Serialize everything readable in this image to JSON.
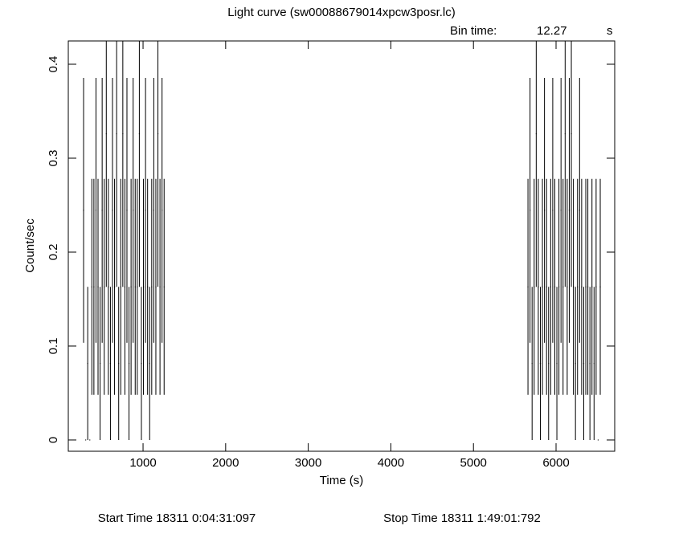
{
  "chart_data": {
    "type": "errorbar",
    "title": "Light curve (sw00088679014xpcw3posr.lc)",
    "bin_time_label": "Bin time:",
    "bin_time": 12.27,
    "bin_time_unit": "s",
    "x_label": "Time (s)",
    "y_label": "Count/sec",
    "start_time": "Start Time 18311  0:04:31:097",
    "stop_time": "Stop Time 18311  1:49:01:792",
    "color": "#000000",
    "xlim": [
      95,
      6710
    ],
    "ylim": [
      -0.012,
      0.4248
    ],
    "xticks": [
      1000,
      2000,
      3000,
      4000,
      5000,
      6000
    ],
    "yticks": [
      0,
      0.1,
      0.2,
      0.3,
      0.4
    ],
    "x": [
      280,
      305,
      330,
      355,
      380,
      405,
      430,
      455,
      480,
      505,
      530,
      555,
      580,
      605,
      630,
      655,
      680,
      705,
      730,
      755,
      780,
      805,
      830,
      855,
      880,
      905,
      930,
      955,
      980,
      1005,
      1030,
      1055,
      1080,
      1105,
      1130,
      1155,
      1180,
      1205,
      1230,
      1255,
      5660,
      5685,
      5710,
      5735,
      5760,
      5785,
      5810,
      5835,
      5860,
      5885,
      5910,
      5935,
      5960,
      5985,
      6010,
      6035,
      6060,
      6085,
      6110,
      6135,
      6160,
      6185,
      6210,
      6235,
      6260,
      6285,
      6310,
      6335,
      6360,
      6385,
      6410,
      6435,
      6460,
      6485,
      6510,
      6535
    ],
    "values": [
      0.2445,
      0,
      0.0815,
      0,
      0.163,
      0.163,
      0.2445,
      0.163,
      0.0815,
      0.2445,
      0.163,
      0.326,
      0.163,
      0.0815,
      0.2445,
      0.163,
      0.326,
      0.0815,
      0.163,
      0.326,
      0.163,
      0.2445,
      0.0815,
      0.163,
      0.2445,
      0.163,
      0.163,
      0.326,
      0.0815,
      0.163,
      0.2445,
      0.163,
      0.0815,
      0.163,
      0.2445,
      0.163,
      0.326,
      0.163,
      0.2445,
      0.163,
      0.163,
      0.2445,
      0.0815,
      0.163,
      0.326,
      0.163,
      0.0815,
      0.163,
      0.2445,
      0.163,
      0.0815,
      0.163,
      0.2445,
      0.163,
      0.0815,
      0.163,
      0.2445,
      0.163,
      0.326,
      0.163,
      0.2445,
      0.326,
      0.163,
      0.0815,
      0.163,
      0.2445,
      0.163,
      0.0815,
      0.163,
      0.163,
      0.0815,
      0.163,
      0.0815,
      0.163,
      0,
      0.163
    ],
    "errors": [
      0.141,
      0,
      0.0815,
      0,
      0.115,
      0.115,
      0.141,
      0.115,
      0.0815,
      0.141,
      0.115,
      0.163,
      0.115,
      0.0815,
      0.141,
      0.115,
      0.163,
      0.0815,
      0.115,
      0.163,
      0.115,
      0.141,
      0.0815,
      0.115,
      0.141,
      0.115,
      0.115,
      0.163,
      0.0815,
      0.115,
      0.141,
      0.115,
      0.0815,
      0.115,
      0.141,
      0.115,
      0.163,
      0.115,
      0.141,
      0.115,
      0.115,
      0.141,
      0.0815,
      0.115,
      0.163,
      0.115,
      0.0815,
      0.115,
      0.141,
      0.115,
      0.0815,
      0.115,
      0.141,
      0.115,
      0.0815,
      0.115,
      0.141,
      0.115,
      0.163,
      0.115,
      0.141,
      0.163,
      0.115,
      0.0815,
      0.115,
      0.141,
      0.115,
      0.0815,
      0.115,
      0.115,
      0.0815,
      0.115,
      0.0815,
      0.115,
      0,
      0.115
    ]
  }
}
